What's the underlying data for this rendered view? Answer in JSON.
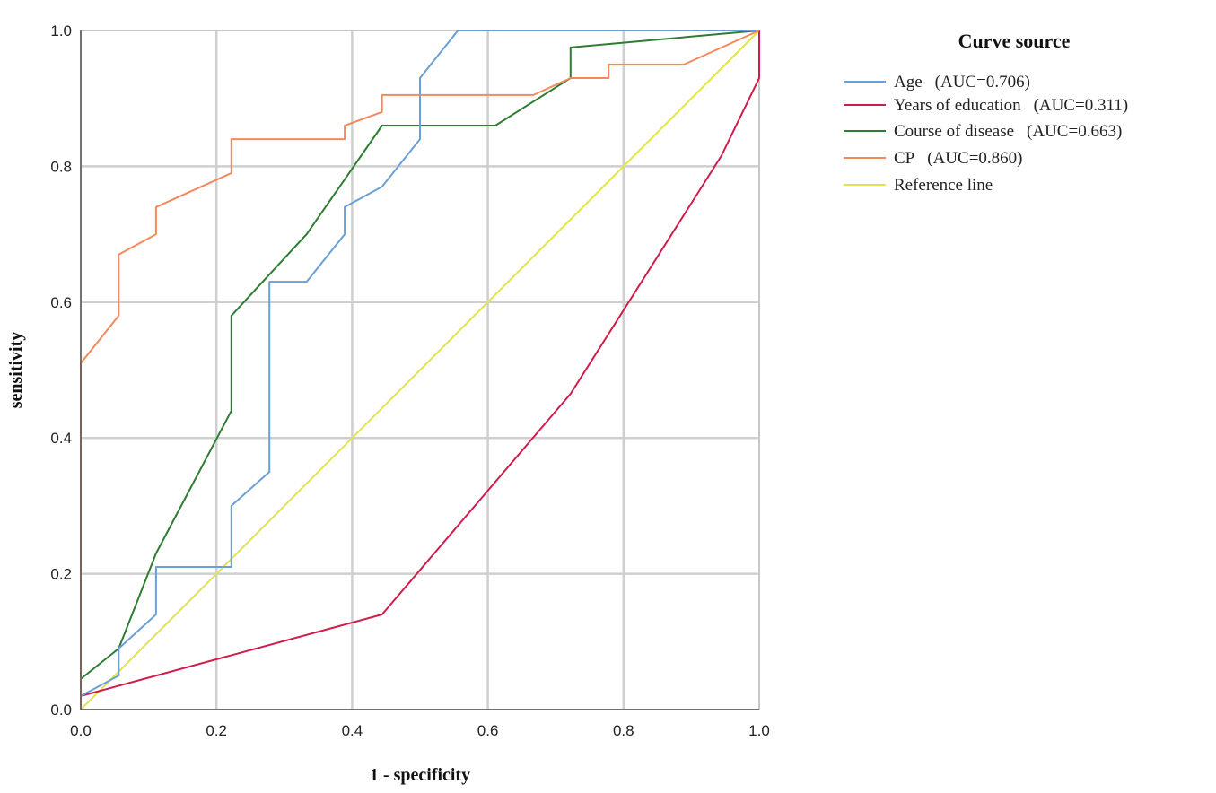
{
  "chart_data": {
    "type": "line",
    "xlabel": "1 - specificity",
    "ylabel": "sensitivity",
    "xlim": [
      0,
      1
    ],
    "ylim": [
      0,
      1
    ],
    "xticks": [
      "0.0",
      "0.2",
      "0.4",
      "0.6",
      "0.8",
      "1.0"
    ],
    "yticks": [
      "0.0",
      "0.2",
      "0.4",
      "0.6",
      "0.8",
      "1.0"
    ],
    "grid": true,
    "legend": {
      "title": "Curve source",
      "placement": "top-right outside"
    },
    "series": [
      {
        "name": "Age",
        "auc_label": "(AUC=0.706)",
        "color": "#6a9fd8",
        "points": [
          [
            0,
            0.02
          ],
          [
            0.056,
            0.05
          ],
          [
            0.056,
            0.09
          ],
          [
            0.111,
            0.14
          ],
          [
            0.111,
            0.21
          ],
          [
            0.222,
            0.21
          ],
          [
            0.222,
            0.3
          ],
          [
            0.278,
            0.35
          ],
          [
            0.278,
            0.63
          ],
          [
            0.333,
            0.63
          ],
          [
            0.389,
            0.7
          ],
          [
            0.389,
            0.74
          ],
          [
            0.444,
            0.77
          ],
          [
            0.5,
            0.84
          ],
          [
            0.5,
            0.93
          ],
          [
            0.556,
            1.0
          ],
          [
            1.0,
            1.0
          ]
        ]
      },
      {
        "name": "Years of education",
        "auc_label": "(AUC=0.311)",
        "color": "#d01c4a",
        "points": [
          [
            0,
            0.02
          ],
          [
            0.444,
            0.14
          ],
          [
            0.722,
            0.465
          ],
          [
            0.944,
            0.815
          ],
          [
            1.0,
            0.93
          ],
          [
            1.0,
            1.0
          ]
        ]
      },
      {
        "name": "Course of disease",
        "auc_label": "(AUC=0.663)",
        "color": "#2e7d32",
        "points": [
          [
            0,
            0.045
          ],
          [
            0.056,
            0.09
          ],
          [
            0.111,
            0.23
          ],
          [
            0.222,
            0.44
          ],
          [
            0.222,
            0.58
          ],
          [
            0.333,
            0.7
          ],
          [
            0.444,
            0.86
          ],
          [
            0.611,
            0.86
          ],
          [
            0.722,
            0.93
          ],
          [
            0.722,
            0.975
          ],
          [
            1.0,
            1.0
          ]
        ]
      },
      {
        "name": "CP",
        "auc_label": "(AUC=0.860)",
        "color": "#f28a5e",
        "points": [
          [
            0,
            0
          ],
          [
            0,
            0.51
          ],
          [
            0.056,
            0.58
          ],
          [
            0.056,
            0.67
          ],
          [
            0.111,
            0.7
          ],
          [
            0.111,
            0.74
          ],
          [
            0.222,
            0.79
          ],
          [
            0.222,
            0.84
          ],
          [
            0.389,
            0.84
          ],
          [
            0.389,
            0.86
          ],
          [
            0.444,
            0.88
          ],
          [
            0.444,
            0.905
          ],
          [
            0.667,
            0.905
          ],
          [
            0.722,
            0.93
          ],
          [
            0.778,
            0.93
          ],
          [
            0.778,
            0.95
          ],
          [
            0.889,
            0.95
          ],
          [
            1.0,
            1.0
          ]
        ]
      },
      {
        "name": "Reference line",
        "auc_label": "",
        "color": "#e3e34a",
        "points": [
          [
            0,
            0
          ],
          [
            1,
            1
          ]
        ]
      }
    ]
  }
}
